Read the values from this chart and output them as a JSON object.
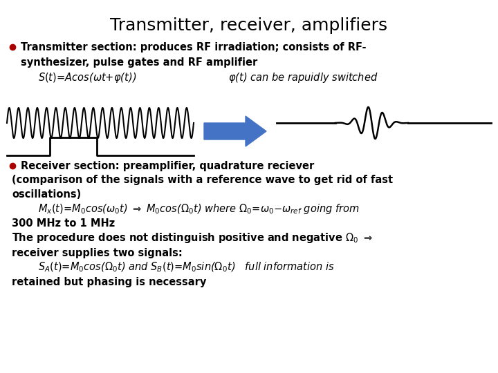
{
  "title": "Transmitter, receiver, amplifiers",
  "title_fontsize": 18,
  "background_color": "#ffffff",
  "bullet_color": "#aa0000",
  "text_color": "#000000",
  "arrow_color": "#4472c4",
  "wave_color": "#000000",
  "tx_line1": "Transmitter section: produces RF irradiation; consists of RF-",
  "tx_line2": "synthesizer, pulse gates and RF amplifier",
  "rx_line1": "Receiver section: preamplifier, quadrature reciever",
  "rx_line2": "(comparison of the signals with a reference wave to get rid of fast",
  "rx_line3": "oscillations)",
  "rx_line5": "300 MHz to 1 MHz",
  "rx_line6": "The procedure does not distinguish positive and negative Ω₀ ⇒",
  "rx_line7": "receiver supplies two signals:",
  "rx_line9": "retained but phasing is necessary"
}
